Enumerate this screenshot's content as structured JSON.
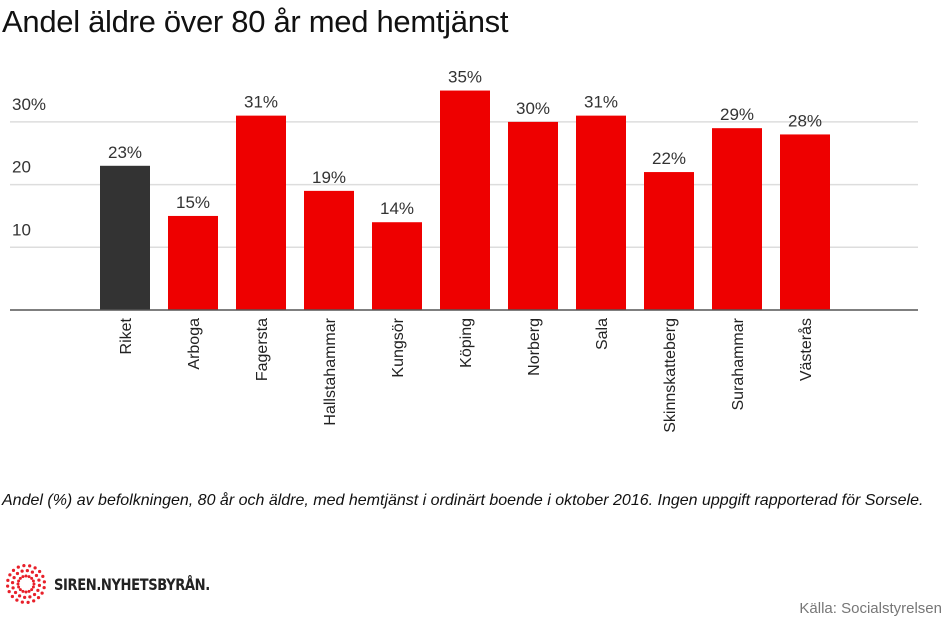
{
  "title": "Andel äldre över 80 år med hemtjänst",
  "caption": "Andel (%) av befolkningen, 80 år och äldre, med hemtjänst i ordinärt boende i oktober 2016. Ingen uppgift rapporterad för Sorsele.",
  "logo_text": "SIREN.NYHETSBYRÅN.",
  "source": "Källa: Socialstyrelsen",
  "colors": {
    "highlight": "#333333",
    "bar": "#ee0000",
    "grid": "#dddddd",
    "axis": "#555555",
    "logo": "#e8202a"
  },
  "chart_data": {
    "type": "bar",
    "title": "Andel äldre över 80 år med hemtjänst",
    "xlabel": "",
    "ylabel": "",
    "ylim": [
      0,
      35
    ],
    "yticks": [
      10,
      20,
      30
    ],
    "ytick_labels": [
      "10",
      "20",
      "30%"
    ],
    "grid": true,
    "categories": [
      "Riket",
      "Arboga",
      "Fagersta",
      "Hallstahammar",
      "Kungsör",
      "Köping",
      "Norberg",
      "Sala",
      "Skinnskatteberg",
      "Surahammar",
      "Västerås"
    ],
    "values": [
      23,
      15,
      31,
      19,
      14,
      35,
      30,
      31,
      22,
      29,
      28
    ],
    "data_labels": [
      "23%",
      "15%",
      "31%",
      "19%",
      "14%",
      "35%",
      "30%",
      "31%",
      "22%",
      "29%",
      "28%"
    ],
    "highlight_index": 0
  }
}
